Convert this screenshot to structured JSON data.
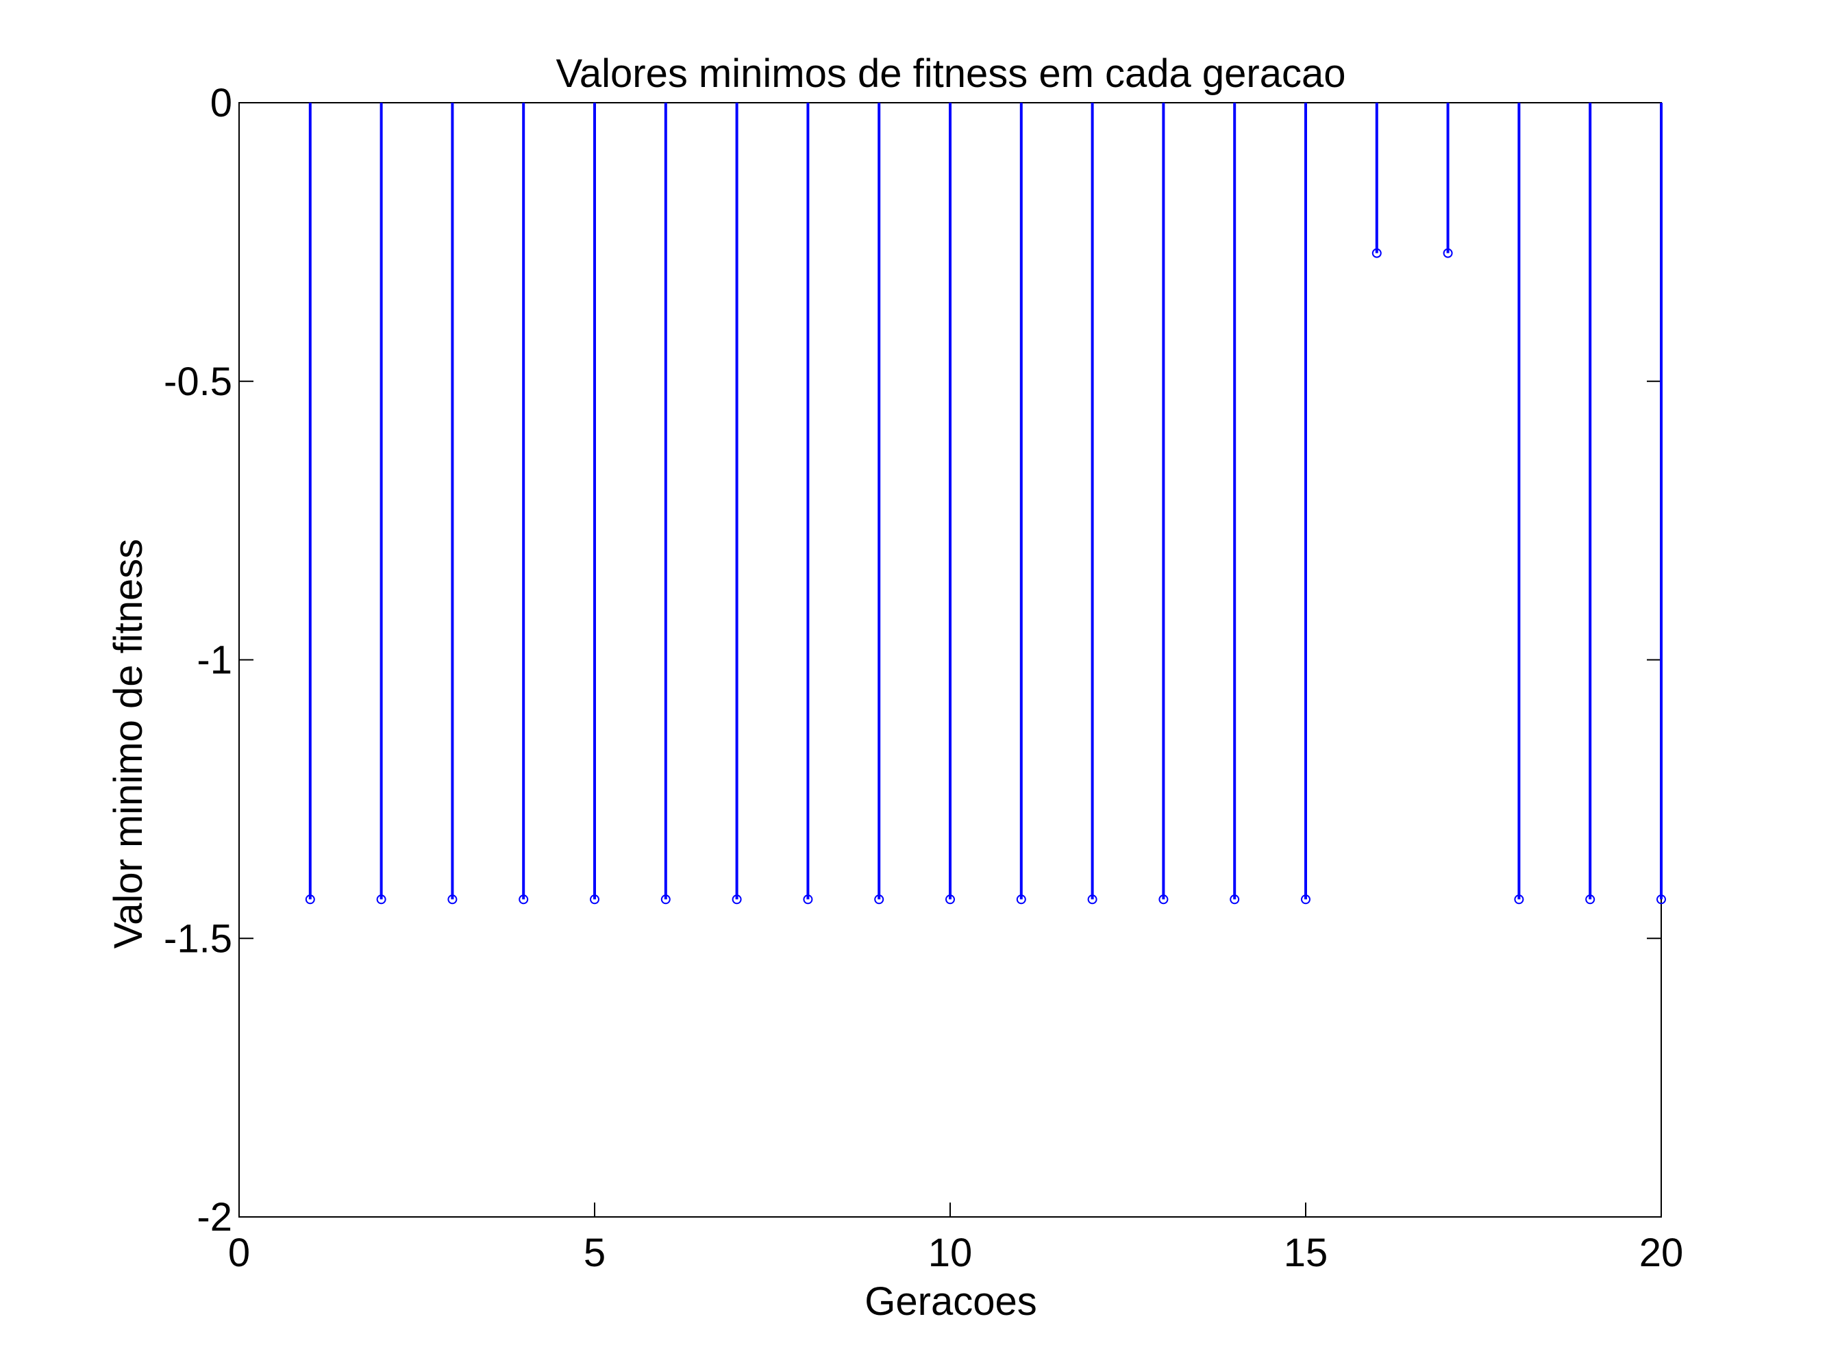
{
  "chart_data": {
    "type": "stem",
    "title": "Valores minimos de fitness em cada geracao",
    "xlabel": "Geracoes",
    "ylabel": "Valor minimo de fitness",
    "xlim": [
      0,
      20
    ],
    "ylim": [
      -2,
      0
    ],
    "xticks": [
      0,
      5,
      10,
      15,
      20
    ],
    "yticks": [
      0,
      -0.5,
      -1,
      -1.5,
      -2
    ],
    "xtick_labels": [
      "0",
      "5",
      "10",
      "15",
      "20"
    ],
    "ytick_labels": [
      "0",
      "-0.5",
      "-1",
      "-1.5",
      "-2"
    ],
    "baseline": 0,
    "grid": false,
    "series": [
      {
        "color": "#0000ff",
        "marker": "circle",
        "x": [
          1,
          2,
          3,
          4,
          5,
          6,
          7,
          8,
          9,
          10,
          11,
          12,
          13,
          14,
          15,
          16,
          17,
          18,
          19,
          20
        ],
        "values": [
          -1.43,
          -1.43,
          -1.43,
          -1.43,
          -1.43,
          -1.43,
          -1.43,
          -1.43,
          -1.43,
          -1.43,
          -1.43,
          -1.43,
          -1.43,
          -1.43,
          -1.43,
          -0.27,
          -0.27,
          -1.43,
          -1.43,
          -1.43
        ]
      }
    ]
  }
}
